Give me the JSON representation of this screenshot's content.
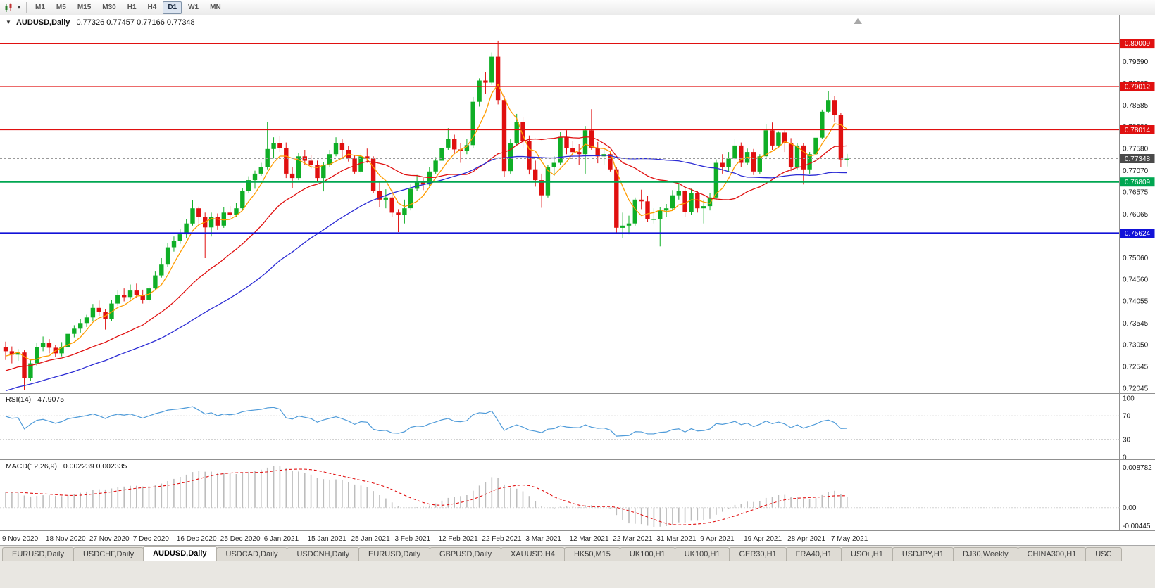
{
  "icons": {
    "chevron_down": "▾"
  },
  "toolbar": {
    "timeframes": [
      {
        "label": "M1",
        "active": false
      },
      {
        "label": "M5",
        "active": false
      },
      {
        "label": "M15",
        "active": false
      },
      {
        "label": "M30",
        "active": false
      },
      {
        "label": "H1",
        "active": false
      },
      {
        "label": "H4",
        "active": false
      },
      {
        "label": "D1",
        "active": true
      },
      {
        "label": "W1",
        "active": false
      },
      {
        "label": "MN",
        "active": false
      }
    ]
  },
  "chart_header": {
    "marker": "▼",
    "symbol_label": "AUDUSD,Daily",
    "ohlc_text": "0.77326 0.77457 0.77166 0.77348"
  },
  "price_axis_ticks": [
    "0.79590",
    "0.79085",
    "0.78585",
    "0.78080",
    "0.77580",
    "0.77070",
    "0.76575",
    "0.76065",
    "0.75565",
    "0.75060",
    "0.74560",
    "0.74055",
    "0.73545",
    "0.73050",
    "0.72545",
    "0.72045"
  ],
  "price_badges": [
    {
      "text": "0.80009",
      "value": 0.80009,
      "color": "#e01010"
    },
    {
      "text": "0.79012",
      "value": 0.79012,
      "color": "#e01010"
    },
    {
      "text": "0.78014",
      "value": 0.78014,
      "color": "#e01010"
    },
    {
      "text": "0.77348",
      "value": 0.77348,
      "color": "#4a4a4a"
    },
    {
      "text": "0.76809",
      "value": 0.76809,
      "color": "#00a651"
    },
    {
      "text": "0.75624",
      "value": 0.75624,
      "color": "#1212d8"
    }
  ],
  "hlines": [
    {
      "value": 0.80009,
      "color": "#e01010",
      "width": 1.2
    },
    {
      "value": 0.79012,
      "color": "#e01010",
      "width": 1.2
    },
    {
      "value": 0.78014,
      "color": "#e01010",
      "width": 1.2
    },
    {
      "value": 0.76809,
      "color": "#00a651",
      "width": 2
    },
    {
      "value": 0.75624,
      "color": "#1212d8",
      "width": 2.4
    }
  ],
  "current_price": {
    "value": 0.77348,
    "line_color": "#9a9a9a"
  },
  "rsi_panel": {
    "label": "RSI(14)",
    "value_text": "47.9075",
    "axis_ticks": [
      "100",
      "70",
      "30",
      "0"
    ],
    "levels": [
      70,
      30
    ],
    "line_color": "#4f9bd9",
    "period": 14
  },
  "macd_panel": {
    "label": "MACD(12,26,9)",
    "value_text": "0.002239 0.002335",
    "axis_top": "0.008782",
    "axis_zero": "0.00",
    "axis_bottom": "-0.00445",
    "hist_color": "#bdbdbd",
    "signal_color": "#e01010",
    "fast": 12,
    "slow": 26,
    "signal": 9
  },
  "date_axis": [
    "9 Nov 2020",
    "18 Nov 2020",
    "27 Nov 2020",
    "7 Dec 2020",
    "16 Dec 2020",
    "25 Dec 2020",
    "6 Jan 2021",
    "15 Jan 2021",
    "25 Jan 2021",
    "3 Feb 2021",
    "12 Feb 2021",
    "22 Feb 2021",
    "3 Mar 2021",
    "12 Mar 2021",
    "22 Mar 2021",
    "31 Mar 2021",
    "9 Apr 2021",
    "19 Apr 2021",
    "28 Apr 2021",
    "7 May 2021"
  ],
  "tabs": [
    {
      "label": "EURUSD,Daily",
      "active": false
    },
    {
      "label": "USDCHF,Daily",
      "active": false
    },
    {
      "label": "AUDUSD,Daily",
      "active": true
    },
    {
      "label": "USDCAD,Daily",
      "active": false
    },
    {
      "label": "USDCNH,Daily",
      "active": false
    },
    {
      "label": "EURUSD,Daily",
      "active": false
    },
    {
      "label": "GBPUSD,Daily",
      "active": false
    },
    {
      "label": "XAUUSD,H4",
      "active": false
    },
    {
      "label": "HK50,M15",
      "active": false
    },
    {
      "label": "UK100,H1",
      "active": false
    },
    {
      "label": "UK100,H1",
      "active": false
    },
    {
      "label": "GER30,H1",
      "active": false
    },
    {
      "label": "FRA40,H1",
      "active": false
    },
    {
      "label": "USOil,H1",
      "active": false
    },
    {
      "label": "USDJPY,H1",
      "active": false
    },
    {
      "label": "DJ30,Weekly",
      "active": false
    },
    {
      "label": "CHINA300,H1",
      "active": false
    },
    {
      "label": "USC",
      "active": false
    }
  ],
  "chart_data": {
    "type": "candlestick",
    "symbol": "AUDUSD",
    "timeframe": "Daily",
    "visible_price_range": {
      "top": 0.8062,
      "bottom": 0.7198
    },
    "up_color": "#0fae26",
    "down_color": "#e01010",
    "overlays": [
      {
        "name": "MA fast",
        "period": 5,
        "color": "#ff9c00"
      },
      {
        "name": "MA medium",
        "period": 20,
        "color": "#e01010"
      },
      {
        "name": "MA slow",
        "period": 40,
        "color": "#2b2bd4"
      }
    ],
    "ma_seed": {
      "bars": 60,
      "start": 0.701,
      "end": 0.7285,
      "wave": 0.0015
    },
    "candles": [
      [
        0.73,
        0.7312,
        0.727,
        0.729
      ],
      [
        0.729,
        0.7301,
        0.7262,
        0.7282
      ],
      [
        0.7282,
        0.7295,
        0.7268,
        0.7287
      ],
      [
        0.7287,
        0.7292,
        0.72,
        0.7228
      ],
      [
        0.7228,
        0.727,
        0.7221,
        0.7262
      ],
      [
        0.7262,
        0.731,
        0.7255,
        0.73
      ],
      [
        0.73,
        0.7324,
        0.729,
        0.731
      ],
      [
        0.731,
        0.7318,
        0.7285,
        0.7298
      ],
      [
        0.7298,
        0.7305,
        0.7276,
        0.7285
      ],
      [
        0.7285,
        0.7311,
        0.7278,
        0.73
      ],
      [
        0.73,
        0.7339,
        0.7295,
        0.733
      ],
      [
        0.733,
        0.735,
        0.7322,
        0.7342
      ],
      [
        0.7342,
        0.7364,
        0.7333,
        0.7355
      ],
      [
        0.7355,
        0.7374,
        0.7346,
        0.7368
      ],
      [
        0.7368,
        0.7399,
        0.736,
        0.739
      ],
      [
        0.739,
        0.7407,
        0.7372,
        0.738
      ],
      [
        0.738,
        0.7388,
        0.734,
        0.7365
      ],
      [
        0.7365,
        0.7409,
        0.736,
        0.74
      ],
      [
        0.74,
        0.743,
        0.7395,
        0.742
      ],
      [
        0.742,
        0.7435,
        0.7405,
        0.7415
      ],
      [
        0.7415,
        0.7444,
        0.741,
        0.743
      ],
      [
        0.743,
        0.7446,
        0.7413,
        0.742
      ],
      [
        0.742,
        0.7432,
        0.74,
        0.7408
      ],
      [
        0.7408,
        0.7442,
        0.7402,
        0.7435
      ],
      [
        0.7435,
        0.7474,
        0.743,
        0.7465
      ],
      [
        0.7465,
        0.7505,
        0.746,
        0.749
      ],
      [
        0.749,
        0.754,
        0.7484,
        0.753
      ],
      [
        0.753,
        0.7555,
        0.752,
        0.7545
      ],
      [
        0.7545,
        0.7572,
        0.7538,
        0.756
      ],
      [
        0.756,
        0.7595,
        0.7552,
        0.7585
      ],
      [
        0.7585,
        0.7639,
        0.758,
        0.762
      ],
      [
        0.762,
        0.7624,
        0.7585,
        0.76
      ],
      [
        0.76,
        0.761,
        0.7505,
        0.7576
      ],
      [
        0.7576,
        0.761,
        0.7555,
        0.76
      ],
      [
        0.76,
        0.7608,
        0.757,
        0.758
      ],
      [
        0.758,
        0.7622,
        0.7575,
        0.761
      ],
      [
        0.761,
        0.7625,
        0.7598,
        0.7605
      ],
      [
        0.7605,
        0.7632,
        0.76,
        0.762
      ],
      [
        0.762,
        0.7666,
        0.7615,
        0.766
      ],
      [
        0.766,
        0.7694,
        0.7655,
        0.7685
      ],
      [
        0.7685,
        0.7707,
        0.7665,
        0.77
      ],
      [
        0.77,
        0.7725,
        0.7695,
        0.7715
      ],
      [
        0.7715,
        0.782,
        0.771,
        0.7757
      ],
      [
        0.7757,
        0.7784,
        0.7735,
        0.777
      ],
      [
        0.777,
        0.7786,
        0.775,
        0.776
      ],
      [
        0.776,
        0.7772,
        0.769,
        0.77
      ],
      [
        0.77,
        0.7715,
        0.7666,
        0.769
      ],
      [
        0.769,
        0.7748,
        0.7685,
        0.774
      ],
      [
        0.774,
        0.7755,
        0.772,
        0.773
      ],
      [
        0.773,
        0.7742,
        0.7712,
        0.772
      ],
      [
        0.772,
        0.773,
        0.7681,
        0.769
      ],
      [
        0.769,
        0.7726,
        0.7659,
        0.772
      ],
      [
        0.772,
        0.7755,
        0.7715,
        0.7745
      ],
      [
        0.7745,
        0.7784,
        0.774,
        0.777
      ],
      [
        0.777,
        0.778,
        0.7736,
        0.7755
      ],
      [
        0.7755,
        0.7764,
        0.7728,
        0.7735
      ],
      [
        0.7735,
        0.7742,
        0.77,
        0.7705
      ],
      [
        0.7705,
        0.7748,
        0.77,
        0.774
      ],
      [
        0.774,
        0.7758,
        0.7725,
        0.7735
      ],
      [
        0.7735,
        0.774,
        0.7655,
        0.766
      ],
      [
        0.766,
        0.768,
        0.7622,
        0.764
      ],
      [
        0.764,
        0.7664,
        0.762,
        0.7645
      ],
      [
        0.7645,
        0.7662,
        0.76,
        0.761
      ],
      [
        0.761,
        0.7618,
        0.7565,
        0.7605
      ],
      [
        0.7605,
        0.764,
        0.7585,
        0.762
      ],
      [
        0.762,
        0.7675,
        0.7615,
        0.7665
      ],
      [
        0.7665,
        0.7697,
        0.766,
        0.768
      ],
      [
        0.768,
        0.769,
        0.7662,
        0.7675
      ],
      [
        0.7675,
        0.7716,
        0.767,
        0.7705
      ],
      [
        0.7705,
        0.7738,
        0.77,
        0.773
      ],
      [
        0.773,
        0.7775,
        0.7725,
        0.776
      ],
      [
        0.776,
        0.7805,
        0.7755,
        0.778
      ],
      [
        0.778,
        0.779,
        0.7745,
        0.7756
      ],
      [
        0.7756,
        0.777,
        0.7725,
        0.7752
      ],
      [
        0.7752,
        0.778,
        0.7745,
        0.7766
      ],
      [
        0.7766,
        0.7877,
        0.776,
        0.7866
      ],
      [
        0.7866,
        0.792,
        0.7855,
        0.7915
      ],
      [
        0.7915,
        0.7934,
        0.7885,
        0.791
      ],
      [
        0.791,
        0.798,
        0.7905,
        0.797
      ],
      [
        0.797,
        0.8007,
        0.786,
        0.787
      ],
      [
        0.787,
        0.788,
        0.7692,
        0.7706
      ],
      [
        0.7706,
        0.778,
        0.77,
        0.777
      ],
      [
        0.777,
        0.7838,
        0.7765,
        0.782
      ],
      [
        0.782,
        0.783,
        0.776,
        0.7776
      ],
      [
        0.7776,
        0.7788,
        0.7698,
        0.771
      ],
      [
        0.771,
        0.773,
        0.767,
        0.7685
      ],
      [
        0.7685,
        0.77,
        0.7621,
        0.765
      ],
      [
        0.765,
        0.772,
        0.7645,
        0.7715
      ],
      [
        0.7715,
        0.774,
        0.7695,
        0.7725
      ],
      [
        0.7725,
        0.7797,
        0.772,
        0.7785
      ],
      [
        0.7785,
        0.78,
        0.7745,
        0.776
      ],
      [
        0.776,
        0.7775,
        0.7735,
        0.775
      ],
      [
        0.775,
        0.7768,
        0.772,
        0.7745
      ],
      [
        0.7745,
        0.781,
        0.77,
        0.78
      ],
      [
        0.78,
        0.7849,
        0.7755,
        0.776
      ],
      [
        0.776,
        0.7773,
        0.7724,
        0.774
      ],
      [
        0.774,
        0.776,
        0.772,
        0.7745
      ],
      [
        0.7745,
        0.7752,
        0.7705,
        0.771
      ],
      [
        0.771,
        0.7715,
        0.7563,
        0.7575
      ],
      [
        0.7575,
        0.761,
        0.7552,
        0.758
      ],
      [
        0.758,
        0.7603,
        0.756,
        0.7585
      ],
      [
        0.7585,
        0.7645,
        0.758,
        0.764
      ],
      [
        0.764,
        0.7663,
        0.7618,
        0.7636
      ],
      [
        0.7636,
        0.7648,
        0.7588,
        0.7595
      ],
      [
        0.7595,
        0.762,
        0.7585,
        0.7595
      ],
      [
        0.7595,
        0.7622,
        0.7532,
        0.7615
      ],
      [
        0.7615,
        0.763,
        0.76,
        0.762
      ],
      [
        0.762,
        0.7662,
        0.7615,
        0.765
      ],
      [
        0.765,
        0.7677,
        0.764,
        0.766
      ],
      [
        0.766,
        0.767,
        0.76,
        0.7612
      ],
      [
        0.7612,
        0.7665,
        0.7605,
        0.7655
      ],
      [
        0.7655,
        0.766,
        0.761,
        0.762
      ],
      [
        0.762,
        0.764,
        0.7585,
        0.7625
      ],
      [
        0.7625,
        0.7655,
        0.7615,
        0.7645
      ],
      [
        0.7645,
        0.7733,
        0.764,
        0.7725
      ],
      [
        0.7725,
        0.7745,
        0.77,
        0.7715
      ],
      [
        0.7715,
        0.775,
        0.7705,
        0.7735
      ],
      [
        0.7735,
        0.778,
        0.773,
        0.7765
      ],
      [
        0.7765,
        0.7772,
        0.7716,
        0.7725
      ],
      [
        0.7725,
        0.7758,
        0.772,
        0.775
      ],
      [
        0.775,
        0.7757,
        0.7697,
        0.7705
      ],
      [
        0.7705,
        0.7745,
        0.77,
        0.774
      ],
      [
        0.774,
        0.7815,
        0.7735,
        0.78
      ],
      [
        0.78,
        0.7818,
        0.7755,
        0.7765
      ],
      [
        0.7765,
        0.7798,
        0.776,
        0.7795
      ],
      [
        0.7795,
        0.78,
        0.775,
        0.777
      ],
      [
        0.777,
        0.7782,
        0.7706,
        0.7715
      ],
      [
        0.7715,
        0.777,
        0.771,
        0.7765
      ],
      [
        0.7765,
        0.777,
        0.7675,
        0.771
      ],
      [
        0.771,
        0.775,
        0.77,
        0.7745
      ],
      [
        0.7745,
        0.779,
        0.774,
        0.7783
      ],
      [
        0.7783,
        0.7848,
        0.778,
        0.7843
      ],
      [
        0.7843,
        0.7891,
        0.784,
        0.787
      ],
      [
        0.787,
        0.788,
        0.782,
        0.7835
      ],
      [
        0.7835,
        0.784,
        0.7715,
        0.7733
      ],
      [
        0.77326,
        0.77457,
        0.77166,
        0.77348
      ]
    ]
  }
}
